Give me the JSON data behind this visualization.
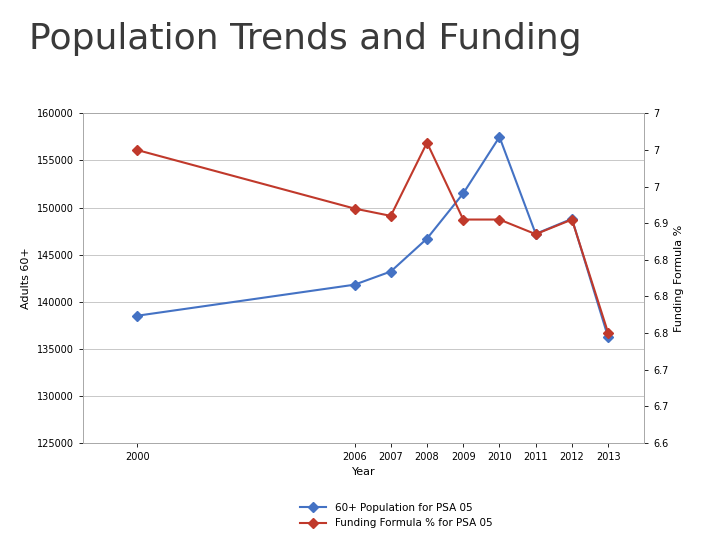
{
  "title": "Population Trends and Funding",
  "title_fontsize": 26,
  "title_color": "#3a3a3a",
  "accent_bar_left_color": "#6b6057",
  "accent_bar_right_color": "#9dc016",
  "background_color": "#ffffff",
  "chart_bg": "#ffffff",
  "years": [
    2000,
    2006,
    2007,
    2008,
    2009,
    2010,
    2011,
    2012,
    2013
  ],
  "population": [
    138500,
    141800,
    143200,
    146700,
    151500,
    157500,
    147200,
    148800,
    136200
  ],
  "funding": [
    7.0,
    6.92,
    6.91,
    7.01,
    6.905,
    6.905,
    6.885,
    6.905,
    6.75
  ],
  "pop_color": "#4472c4",
  "fund_color": "#c0392b",
  "pop_label": "60+ Population for PSA 05",
  "fund_label": "Funding Formula % for PSA 05",
  "xlabel": "Year",
  "ylabel_left": "Adults 60+",
  "ylabel_right": "Funding Formula %",
  "ylim_left": [
    125000,
    160000
  ],
  "ylim_right": [
    6.6,
    7.05
  ],
  "yticks_left": [
    125000,
    130000,
    135000,
    140000,
    145000,
    150000,
    155000,
    160000
  ],
  "yticks_right": [
    6.6,
    6.65,
    6.7,
    6.75,
    6.8,
    6.85,
    6.9,
    6.95,
    7.0,
    7.05
  ],
  "grid_color": "#c8c8c8",
  "marker": "D",
  "linewidth": 1.5,
  "markersize": 5,
  "tick_fontsize": 7,
  "label_fontsize": 8
}
